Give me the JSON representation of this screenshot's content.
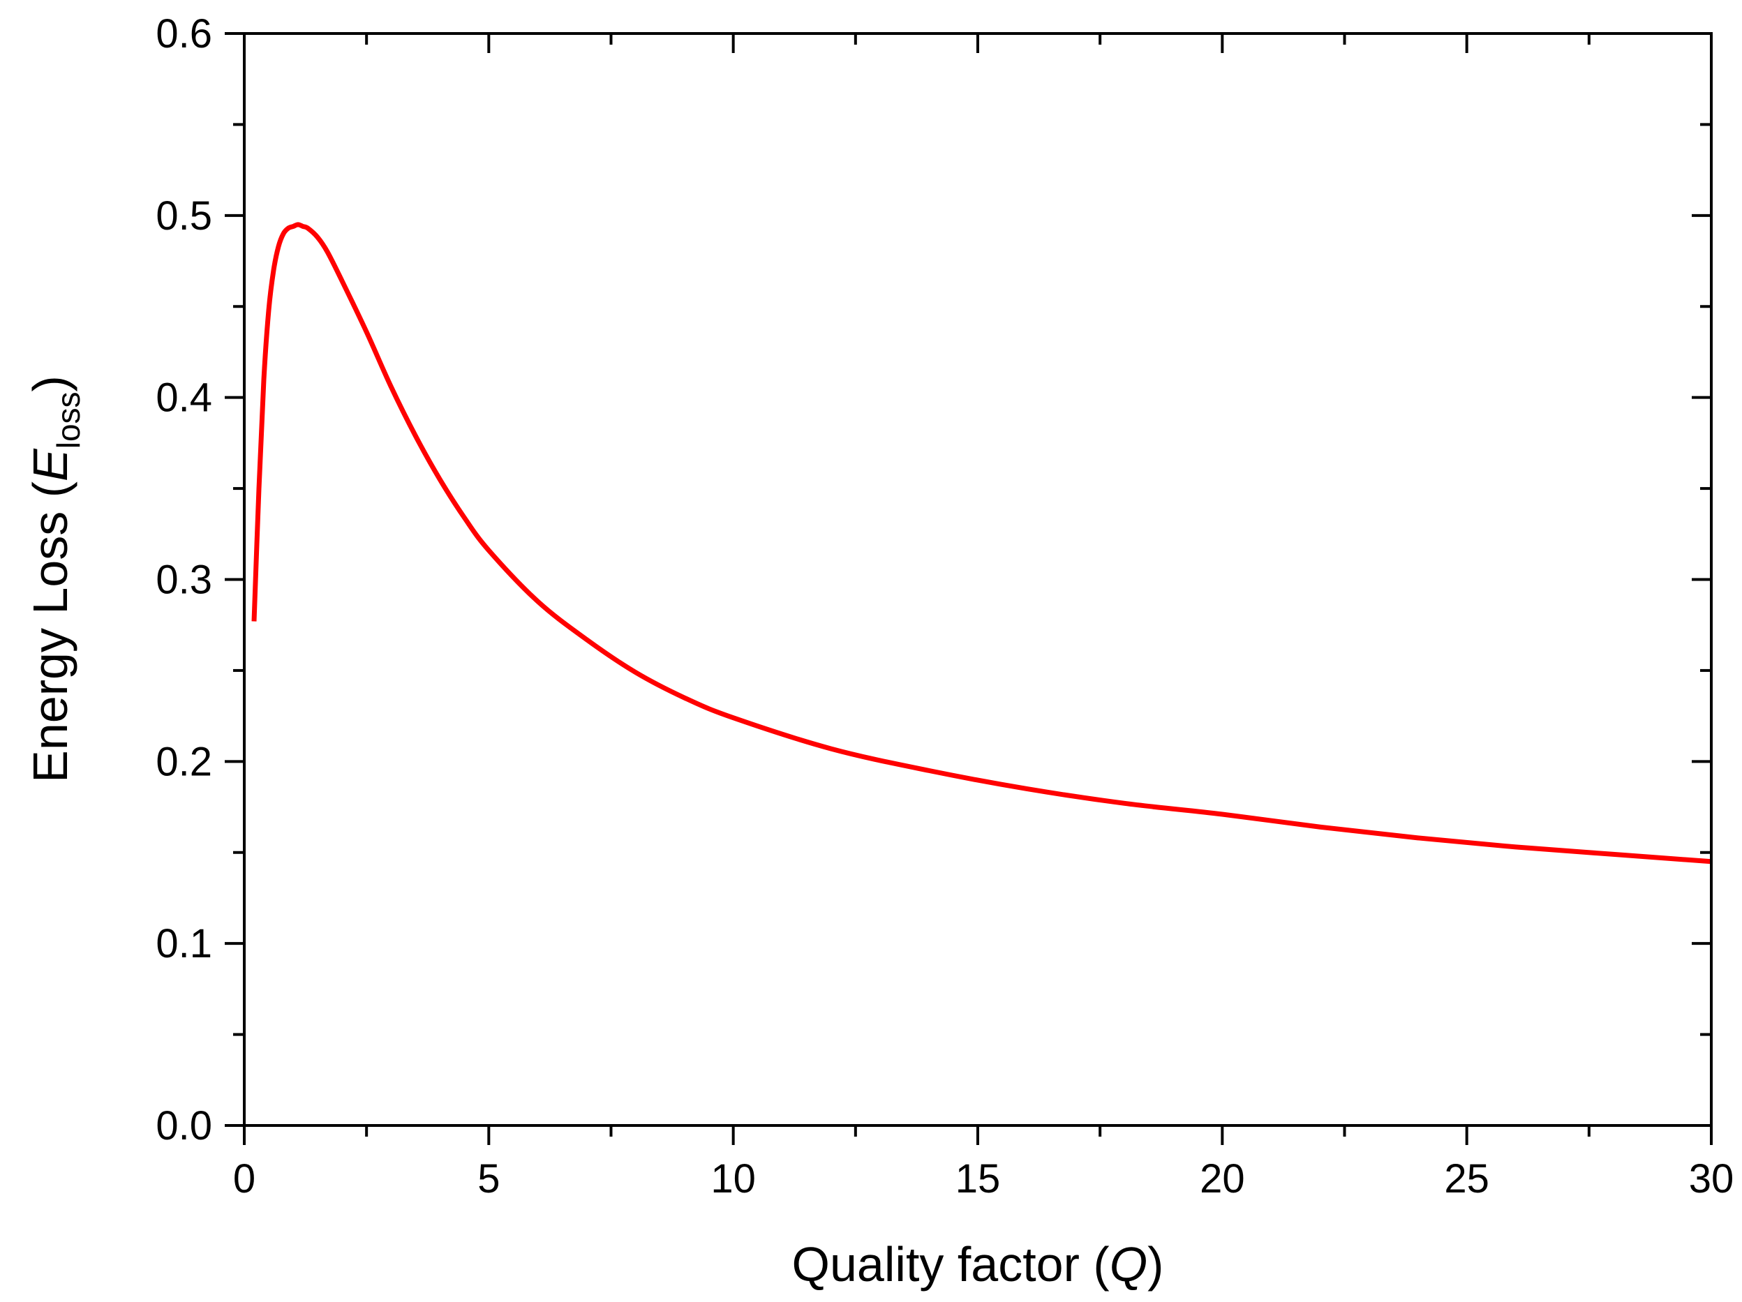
{
  "chart_data": {
    "type": "line",
    "title": "",
    "xlabel": {
      "parts": [
        {
          "text": "Quality factor (",
          "style": "normal"
        },
        {
          "text": "Q",
          "style": "italic"
        },
        {
          "text": ")",
          "style": "normal"
        }
      ]
    },
    "ylabel": {
      "parts": [
        {
          "text": "Energy Loss (",
          "style": "normal"
        },
        {
          "text": "E",
          "style": "italic"
        },
        {
          "text": "loss",
          "style": "sub"
        },
        {
          "text": ")",
          "style": "normal"
        }
      ]
    },
    "xlim": [
      0,
      30
    ],
    "ylim": [
      0,
      0.6
    ],
    "xticks": [
      "0",
      "5",
      "10",
      "15",
      "20",
      "25",
      "30"
    ],
    "yticks": [
      "0.0",
      "0.1",
      "0.2",
      "0.3",
      "0.4",
      "0.5",
      "0.6"
    ],
    "grid": false,
    "legend": "none",
    "series": [
      {
        "color": "#ff0000",
        "x": [
          0.2,
          0.3,
          0.4,
          0.5,
          0.6,
          0.7,
          0.8,
          0.9,
          1.0,
          1.1,
          1.2,
          1.3,
          1.5,
          1.7,
          2.0,
          2.5,
          3.0,
          3.5,
          4.0,
          4.5,
          5.0,
          6.0,
          7.0,
          8.0,
          9.0,
          10.0,
          12.0,
          14.0,
          16.0,
          18.0,
          20.0,
          22.0,
          24.0,
          26.0,
          28.0,
          30.0
        ],
        "y": [
          0.277,
          0.35,
          0.41,
          0.448,
          0.47,
          0.483,
          0.49,
          0.493,
          0.494,
          0.495,
          0.494,
          0.493,
          0.488,
          0.48,
          0.464,
          0.436,
          0.406,
          0.379,
          0.355,
          0.334,
          0.316,
          0.288,
          0.267,
          0.249,
          0.235,
          0.224,
          0.207,
          0.195,
          0.185,
          0.177,
          0.171,
          0.164,
          0.158,
          0.153,
          0.149,
          0.145
        ]
      }
    ]
  }
}
